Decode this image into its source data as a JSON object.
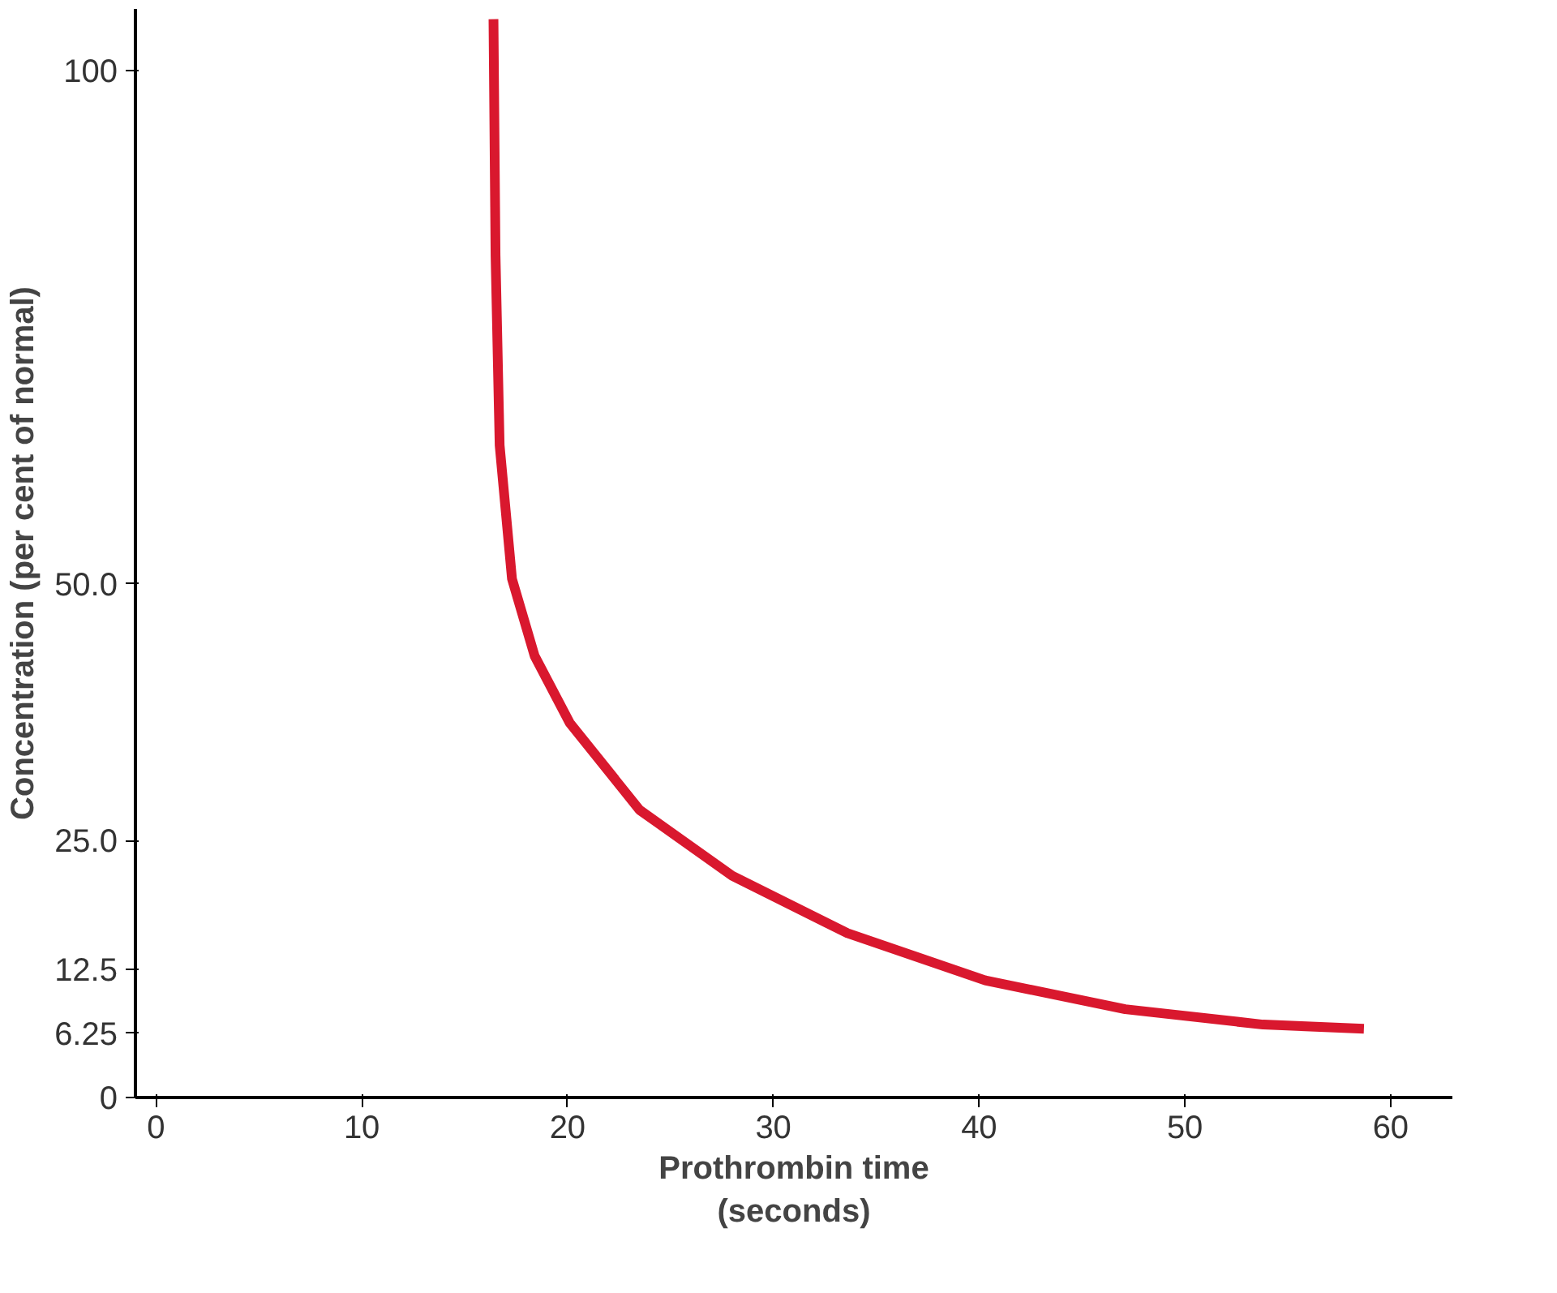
{
  "chart_data": {
    "type": "line",
    "xlabel": "Prothrombin time\n(seconds)",
    "ylabel": "Concentration (per cent of normal)",
    "x": [
      16.4,
      16.5,
      16.7,
      17.3,
      18.4,
      20.1,
      23.5,
      28,
      33.6,
      40.3,
      47.1,
      53.8,
      58.7
    ],
    "series": [
      {
        "color": "#d9182e",
        "values": [
          105,
          82,
          63.5,
          50.5,
          43,
          36.5,
          28,
          21.6,
          16,
          11.4,
          8.6,
          7.1,
          6.7
        ]
      }
    ],
    "xlim": [
      -1,
      63
    ],
    "ylim": [
      0,
      106
    ],
    "xticks": [
      0,
      10,
      20,
      30,
      40,
      50,
      60
    ],
    "yticks": [
      0,
      {
        "value": 6.25,
        "label": "6.25"
      },
      {
        "value": 12.5,
        "label": "12.5"
      },
      {
        "value": 25,
        "label": "25.0"
      },
      {
        "value": 50,
        "label": "50.0"
      },
      100
    ],
    "grid": false,
    "marker": "none",
    "line_style": "solid"
  }
}
